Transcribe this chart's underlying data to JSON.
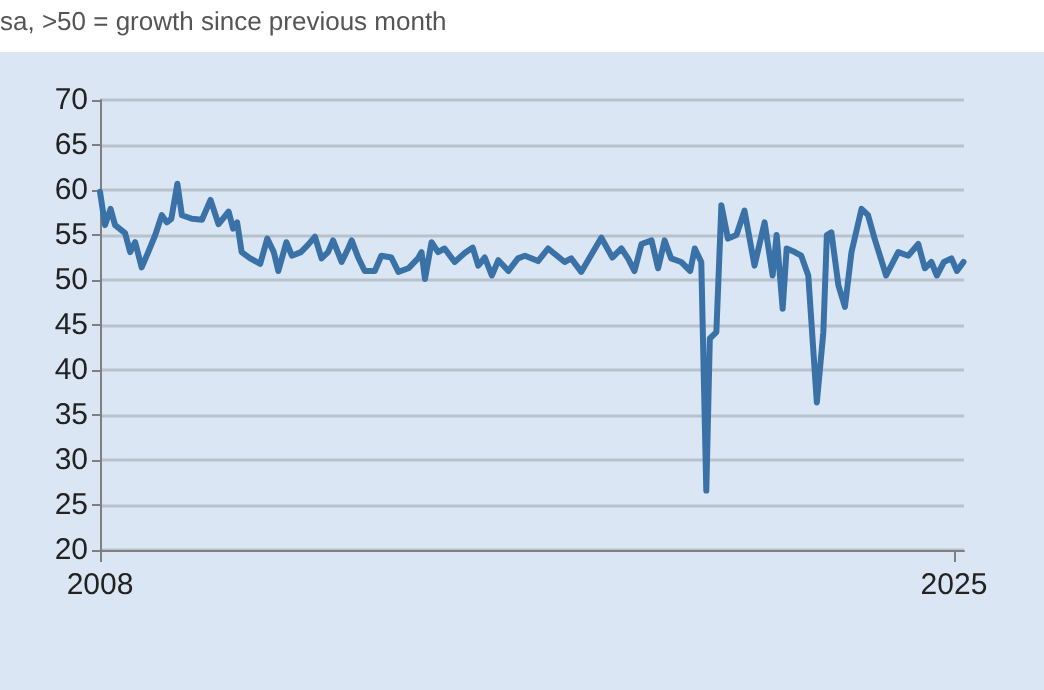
{
  "chart_data": {
    "type": "line",
    "subtitle": "sa, >50 = growth since previous month",
    "x": [
      2008.0,
      2008.1,
      2008.21,
      2008.3,
      2008.5,
      2008.6,
      2008.7,
      2008.83,
      2008.96,
      2009.1,
      2009.23,
      2009.33,
      2009.42,
      2009.54,
      2009.63,
      2009.83,
      2010.03,
      2010.2,
      2010.36,
      2010.56,
      2010.65,
      2010.73,
      2010.82,
      2010.99,
      2011.19,
      2011.33,
      2011.46,
      2011.55,
      2011.71,
      2011.82,
      2012.0,
      2012.14,
      2012.28,
      2012.41,
      2012.54,
      2012.64,
      2012.81,
      2012.94,
      2013.01,
      2013.14,
      2013.27,
      2013.47,
      2013.6,
      2013.8,
      2013.94,
      2014.14,
      2014.33,
      2014.4,
      2014.47,
      2014.6,
      2014.73,
      2014.86,
      2015.06,
      2015.26,
      2015.42,
      2015.53,
      2015.66,
      2015.8,
      2015.93,
      2016.13,
      2016.32,
      2016.46,
      2016.72,
      2016.92,
      2017.25,
      2017.38,
      2017.58,
      2017.98,
      2018.2,
      2018.38,
      2018.51,
      2018.64,
      2018.78,
      2018.98,
      2019.11,
      2019.24,
      2019.37,
      2019.57,
      2019.75,
      2019.84,
      2019.97,
      2020.07,
      2020.14,
      2020.27,
      2020.37,
      2020.5,
      2020.67,
      2020.83,
      2021.03,
      2021.23,
      2021.39,
      2021.47,
      2021.59,
      2021.67,
      2021.83,
      2021.96,
      2022.1,
      2022.27,
      2022.4,
      2022.47,
      2022.56,
      2022.7,
      2022.83,
      2022.96,
      2023.16,
      2023.29,
      2023.42,
      2023.65,
      2023.89,
      2024.09,
      2024.29,
      2024.42,
      2024.55,
      2024.66,
      2024.8,
      2024.95,
      2025.06,
      2025.19
    ],
    "series": [
      {
        "color": "#3a72a8",
        "values": [
          59.8,
          56.1,
          57.9,
          56.1,
          55.2,
          53.1,
          54.2,
          51.4,
          53.1,
          55.0,
          57.2,
          56.4,
          56.8,
          60.7,
          57.2,
          56.8,
          56.7,
          58.9,
          56.2,
          57.6,
          55.7,
          56.4,
          53.1,
          52.4,
          51.8,
          54.6,
          53.1,
          51.0,
          54.2,
          52.7,
          53.1,
          53.9,
          54.8,
          52.4,
          53.1,
          54.4,
          52.0,
          53.5,
          54.4,
          52.5,
          51.0,
          51.0,
          52.7,
          52.5,
          50.9,
          51.3,
          52.4,
          53.1,
          50.1,
          54.2,
          53.1,
          53.5,
          52.0,
          53.0,
          53.6,
          51.6,
          52.5,
          50.5,
          52.2,
          51.0,
          52.4,
          52.7,
          52.1,
          53.5,
          52.0,
          52.4,
          50.9,
          54.7,
          52.5,
          53.5,
          52.4,
          51.0,
          54.0,
          54.4,
          51.3,
          54.4,
          52.4,
          52.0,
          51.0,
          53.5,
          52.0,
          26.6,
          43.5,
          44.2,
          58.3,
          54.6,
          55.0,
          57.7,
          51.6,
          56.4,
          50.5,
          55.0,
          46.8,
          53.5,
          53.1,
          52.7,
          50.5,
          36.4,
          44.2,
          55.0,
          55.3,
          49.4,
          47.0,
          53.1,
          57.9,
          57.2,
          54.6,
          50.5,
          53.1,
          52.7,
          54.0,
          51.3,
          52.0,
          50.5,
          52.0,
          52.4,
          51.0,
          52.0
        ]
      }
    ],
    "xlim": [
      2008,
      2025.2
    ],
    "xticks": [
      2008,
      2025
    ],
    "ylim": [
      20,
      70
    ],
    "yticks": [
      20,
      25,
      30,
      35,
      40,
      45,
      50,
      55,
      60,
      65,
      70
    ],
    "grid": "y",
    "marker": "none",
    "line_style": "solid"
  }
}
